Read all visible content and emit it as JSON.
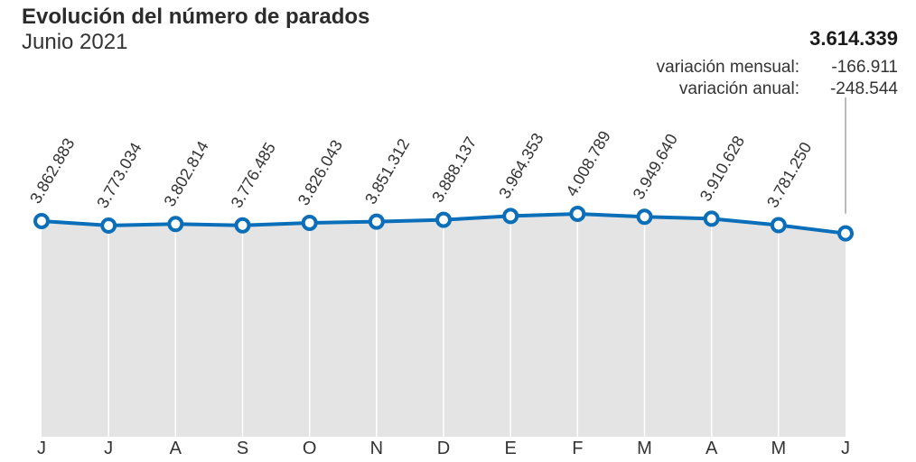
{
  "title": "Evolución del número de parados",
  "subtitle": "Junio 2021",
  "headline": {
    "value": "3.614.339",
    "monthly_label": "variación mensual:",
    "monthly_value": "-166.911",
    "annual_label": "variación anual:",
    "annual_value": "-248.544"
  },
  "colors": {
    "line": "#0a6fb8",
    "area": "#e4e4e4",
    "grid": "#ffffff",
    "guide": "#777777"
  },
  "chart_data": {
    "type": "area",
    "categories": [
      "J",
      "J",
      "A",
      "S",
      "O",
      "N",
      "D",
      "E",
      "F",
      "M",
      "A",
      "M",
      "J"
    ],
    "values": [
      3862883,
      3773034,
      3802814,
      3776485,
      3826043,
      3851312,
      3888137,
      3964353,
      4008789,
      3949640,
      3910628,
      3781250,
      3614339
    ],
    "labels": [
      "3.862.883",
      "3.773.034",
      "3.802.814",
      "3.776.485",
      "3.826.043",
      "3.851.312",
      "3.888.137",
      "3.964.353",
      "4.008.789",
      "3.949.640",
      "3.910.628",
      "3.781.250",
      ""
    ],
    "grid": true,
    "title": "Evolución del número de parados",
    "xlabel": "",
    "ylabel": ""
  }
}
